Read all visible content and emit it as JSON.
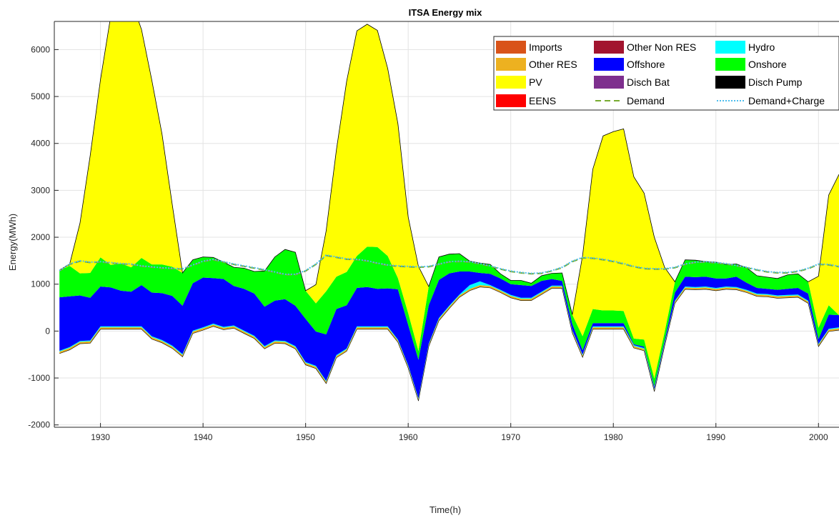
{
  "chart_data": {
    "type": "area",
    "title": "ITSA Energy mix",
    "xlabel": "Time(h)",
    "ylabel": "Energy(MWh)",
    "xlim": [
      1925.5,
      2002
    ],
    "ylim": [
      -2050,
      6600
    ],
    "xticks": [
      1930,
      1940,
      1950,
      1960,
      1970,
      1980,
      1990,
      2000
    ],
    "yticks": [
      -2000,
      -1000,
      0,
      1000,
      2000,
      3000,
      4000,
      5000,
      6000
    ],
    "grid": true,
    "legend_position": "top-right",
    "x": [
      1926,
      1927,
      1928,
      1929,
      1930,
      1931,
      1932,
      1933,
      1934,
      1935,
      1936,
      1937,
      1938,
      1939,
      1940,
      1941,
      1942,
      1943,
      1944,
      1945,
      1946,
      1947,
      1948,
      1949,
      1950,
      1951,
      1952,
      1953,
      1954,
      1955,
      1956,
      1957,
      1958,
      1959,
      1960,
      1961,
      1962,
      1963,
      1964,
      1965,
      1966,
      1967,
      1968,
      1969,
      1970,
      1971,
      1972,
      1973,
      1974,
      1975,
      1976,
      1977,
      1978,
      1979,
      1980,
      1981,
      1982,
      1983,
      1984,
      1985,
      1986,
      1987,
      1988,
      1989,
      1990,
      1991,
      1992,
      1993,
      1994,
      1995,
      1996,
      1997,
      1998,
      1999,
      2000,
      2001,
      2002
    ],
    "base": [
      -480,
      -400,
      -270,
      -260,
      40,
      40,
      40,
      40,
      40,
      -170,
      -250,
      -370,
      -550,
      -50,
      20,
      100,
      30,
      60,
      -50,
      -160,
      -380,
      -260,
      -270,
      -380,
      -720,
      -800,
      -1120,
      -570,
      -430,
      40,
      40,
      40,
      40,
      -240,
      -790,
      -1490,
      -330,
      220,
      480,
      720,
      860,
      940,
      920,
      820,
      710,
      650,
      650,
      780,
      910,
      910,
      -40,
      -560,
      40,
      40,
      40,
      40,
      -360,
      -420,
      -1290,
      -320,
      590,
      890,
      880,
      890,
      860,
      890,
      880,
      820,
      740,
      730,
      700,
      710,
      720,
      590,
      -330,
      -10,
      20
    ],
    "series": [
      {
        "name": "Imports",
        "color": "#d95319",
        "values": [
          0,
          0,
          0,
          0,
          0,
          0,
          0,
          0,
          0,
          0,
          0,
          0,
          0,
          0,
          0,
          0,
          0,
          0,
          0,
          0,
          0,
          0,
          0,
          0,
          0,
          0,
          0,
          0,
          0,
          0,
          0,
          0,
          0,
          0,
          0,
          0,
          0,
          0,
          0,
          0,
          0,
          0,
          0,
          0,
          0,
          0,
          0,
          0,
          0,
          0,
          0,
          0,
          0,
          0,
          0,
          0,
          0,
          0,
          0,
          0,
          0,
          0,
          0,
          0,
          0,
          0,
          0,
          0,
          0,
          0,
          0,
          0,
          0,
          0,
          0,
          0,
          0
        ]
      },
      {
        "name": "Other RES",
        "color": "#edb120",
        "values": [
          40,
          40,
          40,
          40,
          40,
          40,
          40,
          40,
          40,
          40,
          40,
          40,
          40,
          40,
          40,
          40,
          40,
          40,
          40,
          40,
          40,
          40,
          40,
          40,
          40,
          40,
          40,
          40,
          40,
          40,
          40,
          40,
          40,
          40,
          40,
          40,
          40,
          40,
          40,
          40,
          40,
          40,
          40,
          40,
          40,
          40,
          40,
          40,
          40,
          40,
          40,
          40,
          40,
          40,
          40,
          40,
          40,
          40,
          40,
          40,
          40,
          40,
          40,
          40,
          40,
          40,
          40,
          40,
          40,
          40,
          40,
          40,
          40,
          40,
          40,
          40,
          40
        ]
      },
      {
        "name": "Hydro",
        "color": "#00ffff",
        "values": [
          20,
          20,
          20,
          20,
          20,
          20,
          20,
          20,
          20,
          20,
          20,
          20,
          20,
          20,
          20,
          20,
          20,
          20,
          20,
          20,
          20,
          20,
          20,
          20,
          20,
          20,
          20,
          20,
          20,
          20,
          20,
          20,
          20,
          20,
          20,
          20,
          20,
          20,
          20,
          20,
          80,
          80,
          20,
          20,
          20,
          20,
          20,
          20,
          20,
          20,
          20,
          20,
          20,
          20,
          20,
          20,
          20,
          20,
          20,
          20,
          20,
          20,
          20,
          20,
          20,
          20,
          20,
          20,
          20,
          20,
          20,
          20,
          20,
          20,
          20,
          20,
          20
        ]
      },
      {
        "name": "Offshore",
        "color": "#0000ff",
        "values": [
          1140,
          1080,
          970,
          910,
          850,
          830,
          760,
          740,
          880,
          930,
          1000,
          1060,
          1030,
          1010,
          1060,
          970,
          1020,
          840,
          890,
          900,
          840,
          850,
          890,
          860,
          920,
          730,
          990,
          980,
          920,
          820,
          840,
          800,
          810,
          1070,
          860,
          820,
          820,
          810,
          690,
          490,
          290,
          180,
          240,
          240,
          230,
          270,
          250,
          230,
          140,
          100,
          130,
          90,
          70,
          70,
          70,
          70,
          20,
          30,
          50,
          60,
          170,
          210,
          210,
          210,
          200,
          170,
          220,
          150,
          120,
          110,
          120,
          130,
          140,
          150,
          100,
          300,
          260
        ]
      },
      {
        "name": "Onshore",
        "color": "#00ff00",
        "values": [
          580,
          650,
          470,
          530,
          620,
          480,
          580,
          520,
          580,
          600,
          610,
          620,
          700,
          500,
          440,
          440,
          360,
          400,
          440,
          470,
          760,
          930,
          1060,
          1140,
          600,
          600,
          920,
          690,
          710,
          680,
          860,
          890,
          690,
          240,
          250,
          190,
          400,
          490,
          410,
          380,
          220,
          210,
          200,
          100,
          80,
          100,
          60,
          110,
          120,
          170,
          200,
          300,
          300,
          270,
          270,
          260,
          120,
          150,
          170,
          180,
          230,
          360,
          360,
          320,
          350,
          300,
          270,
          320,
          260,
          250,
          240,
          300,
          300,
          250,
          240,
          200,
          0
        ]
      },
      {
        "name": "PV",
        "color": "#ffff00",
        "values": [
          0,
          40,
          1070,
          2500,
          3790,
          5300,
          5620,
          5690,
          4870,
          3930,
          2780,
          1320,
          0,
          0,
          0,
          0,
          0,
          0,
          0,
          0,
          0,
          0,
          0,
          0,
          0,
          400,
          1290,
          2700,
          4070,
          4800,
          4740,
          4620,
          4000,
          3290,
          2050,
          1800,
          0,
          0,
          0,
          0,
          0,
          0,
          0,
          0,
          0,
          0,
          0,
          0,
          0,
          0,
          0,
          1720,
          2980,
          3720,
          3810,
          3880,
          3450,
          3120,
          3010,
          1380,
          0,
          0,
          0,
          0,
          0,
          0,
          0,
          0,
          0,
          0,
          0,
          0,
          0,
          0,
          1100,
          2350,
          3000
        ]
      }
    ],
    "demand": {
      "name": "Demand",
      "color": "#77ac30",
      "values": [
        1280,
        1420,
        1490,
        1460,
        1470,
        1450,
        1430,
        1420,
        1380,
        1360,
        1340,
        1330,
        1320,
        1400,
        1480,
        1520,
        1470,
        1420,
        1380,
        1340,
        1300,
        1250,
        1200,
        1200,
        1280,
        1420,
        1610,
        1570,
        1530,
        1520,
        1490,
        1440,
        1400,
        1380,
        1370,
        1360,
        1370,
        1420,
        1470,
        1480,
        1470,
        1430,
        1380,
        1320,
        1270,
        1240,
        1220,
        1230,
        1280,
        1350,
        1480,
        1560,
        1550,
        1520,
        1480,
        1430,
        1370,
        1330,
        1320,
        1320,
        1350,
        1420,
        1460,
        1470,
        1450,
        1430,
        1390,
        1350,
        1300,
        1260,
        1240,
        1240,
        1270,
        1330,
        1420,
        1410,
        1370
      ]
    },
    "demand_charge": {
      "name": "Demand+Charge",
      "color": "#4dbeee",
      "values": [
        1290,
        1430,
        1500,
        1470,
        1480,
        1460,
        1440,
        1430,
        1390,
        1370,
        1350,
        1340,
        1330,
        1410,
        1490,
        1530,
        1480,
        1430,
        1390,
        1350,
        1310,
        1260,
        1210,
        1210,
        1290,
        1430,
        1620,
        1580,
        1540,
        1530,
        1500,
        1450,
        1410,
        1390,
        1380,
        1370,
        1380,
        1430,
        1480,
        1490,
        1480,
        1440,
        1390,
        1330,
        1280,
        1250,
        1230,
        1240,
        1290,
        1360,
        1490,
        1570,
        1560,
        1530,
        1490,
        1440,
        1380,
        1340,
        1330,
        1330,
        1360,
        1430,
        1470,
        1480,
        1460,
        1440,
        1400,
        1360,
        1310,
        1270,
        1250,
        1250,
        1280,
        1340,
        1430,
        1420,
        1380
      ]
    },
    "legend": [
      {
        "name": "Imports",
        "color": "#d95319",
        "kind": "patch"
      },
      {
        "name": "Other Non RES",
        "color": "#a2142f",
        "kind": "patch"
      },
      {
        "name": "Hydro",
        "color": "#00ffff",
        "kind": "patch"
      },
      {
        "name": "Other RES",
        "color": "#edb120",
        "kind": "patch"
      },
      {
        "name": "Offshore",
        "color": "#0000ff",
        "kind": "patch"
      },
      {
        "name": "Onshore",
        "color": "#00ff00",
        "kind": "patch"
      },
      {
        "name": "PV",
        "color": "#ffff00",
        "kind": "patch"
      },
      {
        "name": "Disch Bat",
        "color": "#7e2f8e",
        "kind": "patch"
      },
      {
        "name": "Disch Pump",
        "color": "#000000",
        "kind": "patch"
      },
      {
        "name": "EENS",
        "color": "#ff0000",
        "kind": "patch"
      },
      {
        "name": "Demand",
        "color": "#77ac30",
        "kind": "dashed"
      },
      {
        "name": "Demand+Charge",
        "color": "#4dbeee",
        "kind": "dotted"
      }
    ]
  }
}
